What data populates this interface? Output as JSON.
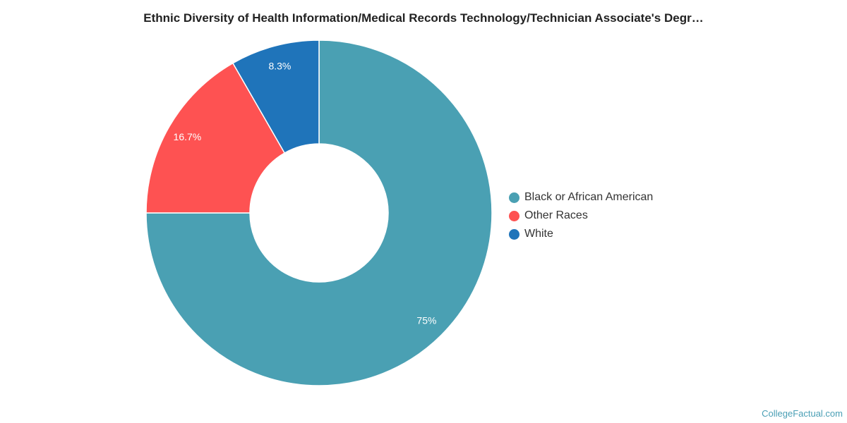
{
  "chart_data": {
    "type": "pie",
    "variant": "donut",
    "title": "Ethnic Diversity of Health Information/Medical Records Technology/Technician Associate's Degr…",
    "slices": [
      {
        "name": "Black or African American",
        "value": 75,
        "label": "75%",
        "color": "#4aa0b3"
      },
      {
        "name": "Other Races",
        "value": 16.7,
        "label": "16.7%",
        "color": "#fe5252"
      },
      {
        "name": "White",
        "value": 8.3,
        "label": "8.3%",
        "color": "#1f74ba"
      }
    ],
    "legend_position": "right"
  },
  "credit": "CollegeFactual.com"
}
